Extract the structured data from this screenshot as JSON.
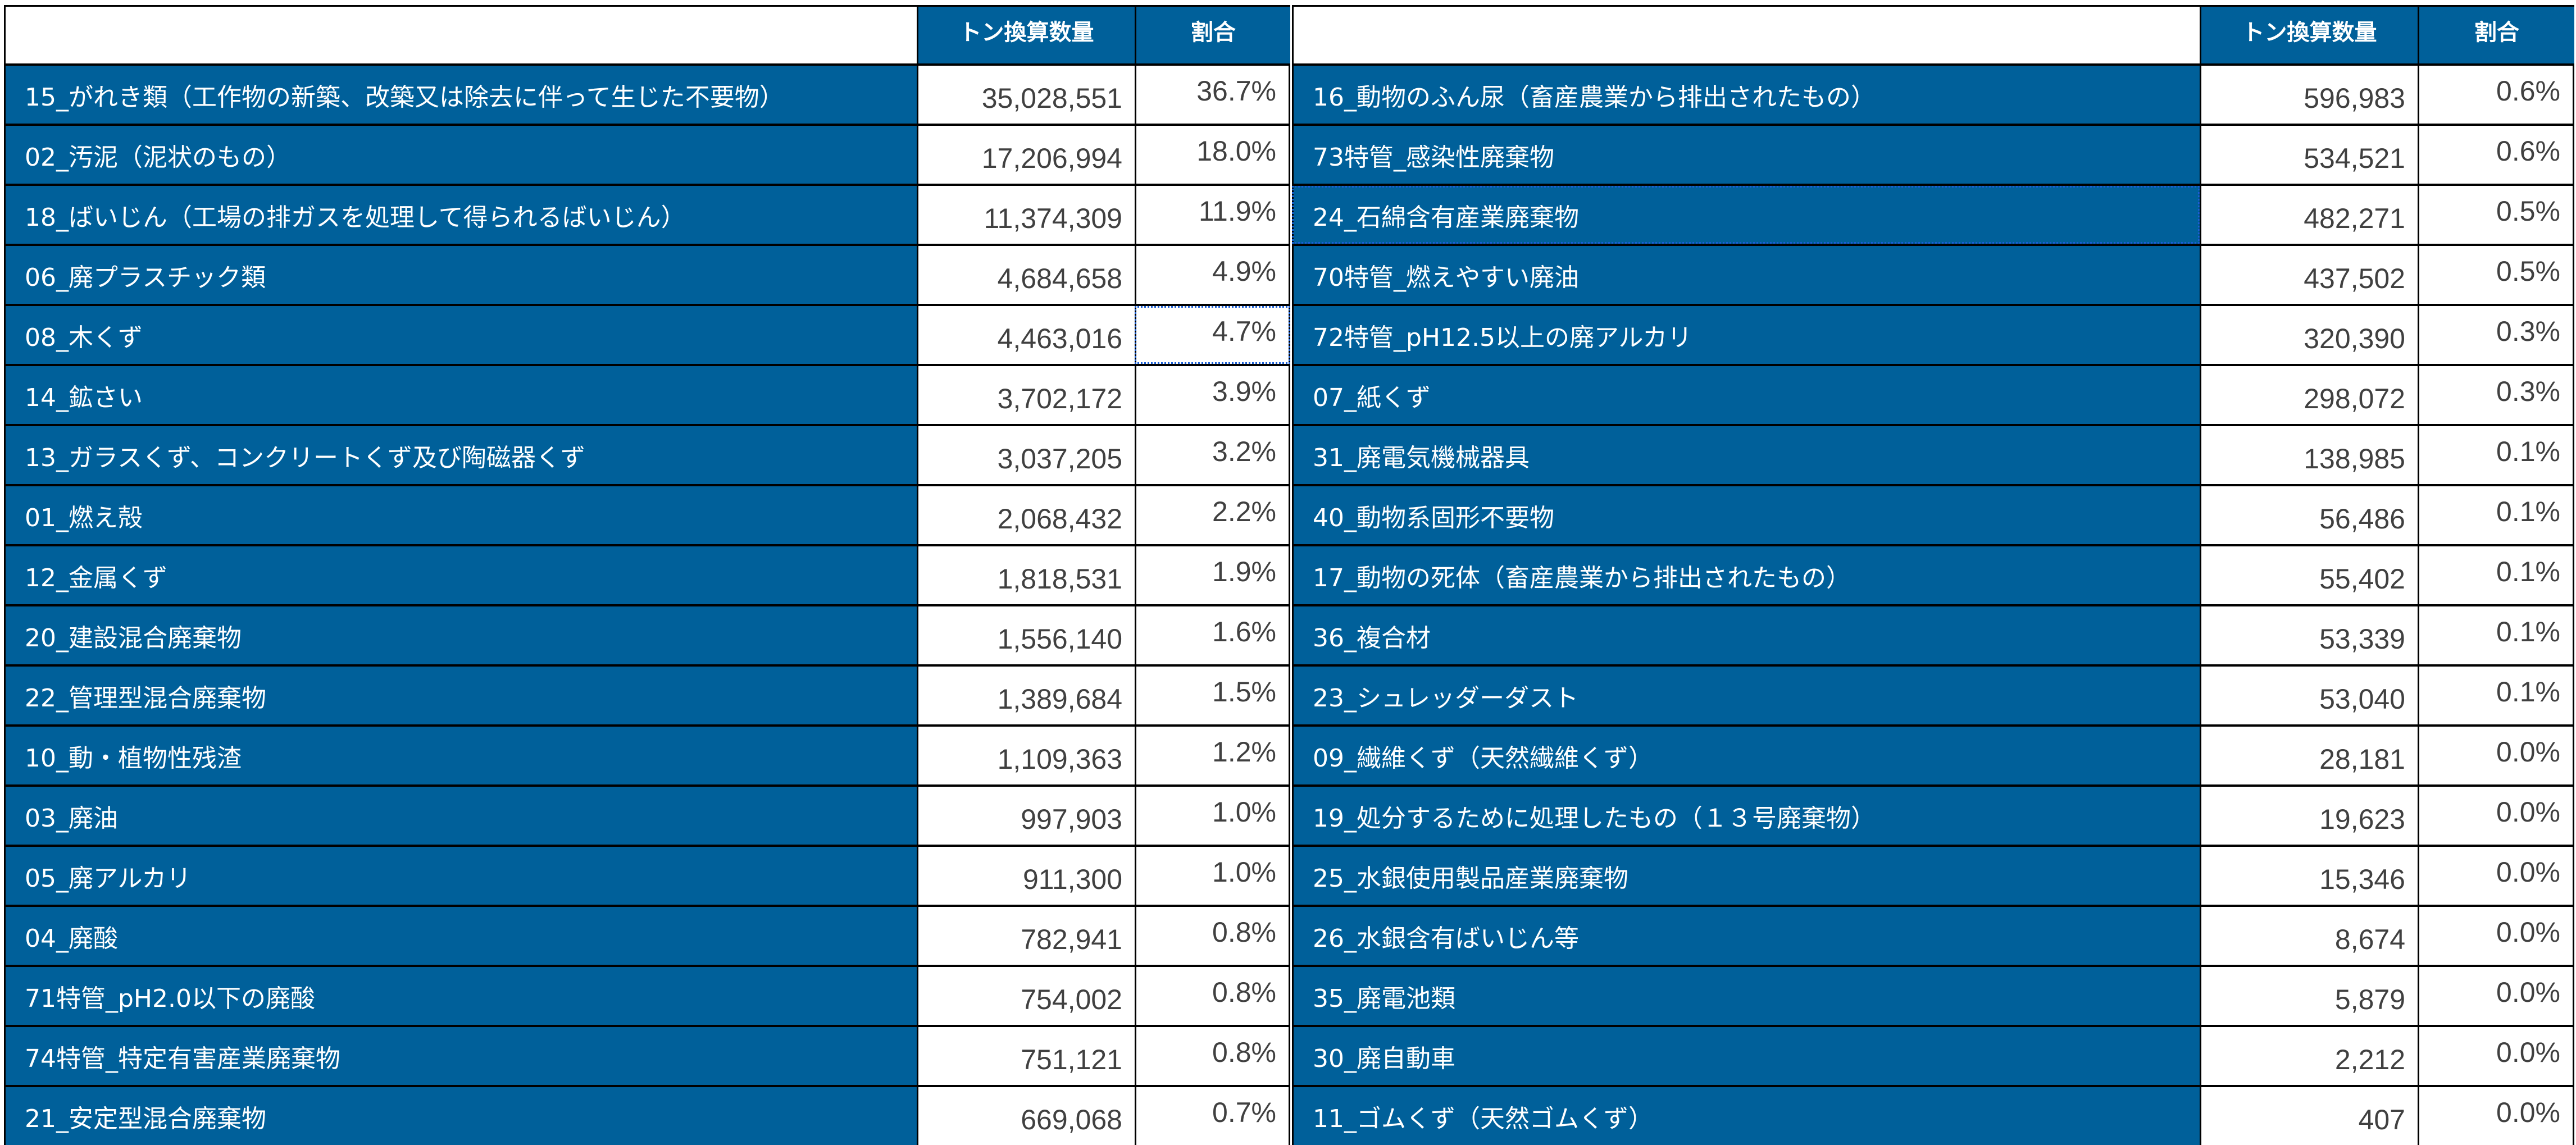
{
  "headers": {
    "name": "",
    "quantity": "トン換算数量",
    "ratio": "割合"
  },
  "colors": {
    "header_bg": "#00609a",
    "name_bg": "#00609a",
    "text_light": "#ffffff",
    "value_text": "#404040",
    "border": "#000000",
    "selection": "#1a5fd6"
  },
  "left_table": {
    "rows": [
      {
        "name": "15_がれき類（工作物の新築、改築又は除去に伴って生じた不要物）",
        "quantity": "35,028,551",
        "ratio": "36.7%"
      },
      {
        "name": "02_汚泥（泥状のもの）",
        "quantity": "17,206,994",
        "ratio": "18.0%"
      },
      {
        "name": "18_ばいじん（工場の排ガスを処理して得られるばいじん）",
        "quantity": "11,374,309",
        "ratio": "11.9%"
      },
      {
        "name": "06_廃プラスチック類",
        "quantity": "4,684,658",
        "ratio": "4.9%"
      },
      {
        "name": "08_木くず",
        "quantity": "4,463,016",
        "ratio": "4.7%"
      },
      {
        "name": "14_鉱さい",
        "quantity": "3,702,172",
        "ratio": "3.9%"
      },
      {
        "name": "13_ガラスくず、コンクリートくず及び陶磁器くず",
        "quantity": "3,037,205",
        "ratio": "3.2%"
      },
      {
        "name": "01_燃え殻",
        "quantity": "2,068,432",
        "ratio": "2.2%"
      },
      {
        "name": "12_金属くず",
        "quantity": "1,818,531",
        "ratio": "1.9%"
      },
      {
        "name": "20_建設混合廃棄物",
        "quantity": "1,556,140",
        "ratio": "1.6%"
      },
      {
        "name": "22_管理型混合廃棄物",
        "quantity": "1,389,684",
        "ratio": "1.5%"
      },
      {
        "name": "10_動・植物性残渣",
        "quantity": "1,109,363",
        "ratio": "1.2%"
      },
      {
        "name": "03_廃油",
        "quantity": "997,903",
        "ratio": "1.0%"
      },
      {
        "name": "05_廃アルカリ",
        "quantity": "911,300",
        "ratio": "1.0%"
      },
      {
        "name": "04_廃酸",
        "quantity": "782,941",
        "ratio": "0.8%"
      },
      {
        "name": "71特管_pH2.0以下の廃酸",
        "quantity": "754,002",
        "ratio": "0.8%"
      },
      {
        "name": "74特管_特定有害産業廃棄物",
        "quantity": "751,121",
        "ratio": "0.8%"
      },
      {
        "name": "21_安定型混合廃棄物",
        "quantity": "669,068",
        "ratio": "0.7%"
      }
    ]
  },
  "right_table": {
    "rows": [
      {
        "name": "16_動物のふん尿（畜産農業から排出されたもの）",
        "quantity": "596,983",
        "ratio": "0.6%"
      },
      {
        "name": "73特管_感染性廃棄物",
        "quantity": "534,521",
        "ratio": "0.6%"
      },
      {
        "name": "24_石綿含有産業廃棄物",
        "quantity": "482,271",
        "ratio": "0.5%"
      },
      {
        "name": "70特管_燃えやすい廃油",
        "quantity": "437,502",
        "ratio": "0.5%"
      },
      {
        "name": "72特管_pH12.5以上の廃アルカリ",
        "quantity": "320,390",
        "ratio": "0.3%"
      },
      {
        "name": "07_紙くず",
        "quantity": "298,072",
        "ratio": "0.3%"
      },
      {
        "name": "31_廃電気機械器具",
        "quantity": "138,985",
        "ratio": "0.1%"
      },
      {
        "name": "40_動物系固形不要物",
        "quantity": "56,486",
        "ratio": "0.1%"
      },
      {
        "name": "17_動物の死体（畜産農業から排出されたもの）",
        "quantity": "55,402",
        "ratio": "0.1%"
      },
      {
        "name": "36_複合材",
        "quantity": "53,339",
        "ratio": "0.1%"
      },
      {
        "name": "23_シュレッダーダスト",
        "quantity": "53,040",
        "ratio": "0.1%"
      },
      {
        "name": "09_繊維くず（天然繊維くず）",
        "quantity": "28,181",
        "ratio": "0.0%"
      },
      {
        "name": "19_処分するために処理したもの（１３号廃棄物）",
        "quantity": "19,623",
        "ratio": "0.0%"
      },
      {
        "name": "25_水銀使用製品産業廃棄物",
        "quantity": "15,346",
        "ratio": "0.0%"
      },
      {
        "name": "26_水銀含有ばいじん等",
        "quantity": "8,674",
        "ratio": "0.0%"
      },
      {
        "name": "35_廃電池類",
        "quantity": "5,879",
        "ratio": "0.0%"
      },
      {
        "name": "30_廃自動車",
        "quantity": "2,212",
        "ratio": "0.0%"
      },
      {
        "name": "11_ゴムくず（天然ゴムくず）",
        "quantity": "407",
        "ratio": "0.0%"
      }
    ]
  },
  "selection": {
    "left_selected_ratio_row": 4,
    "right_selected_name_row": 2
  }
}
